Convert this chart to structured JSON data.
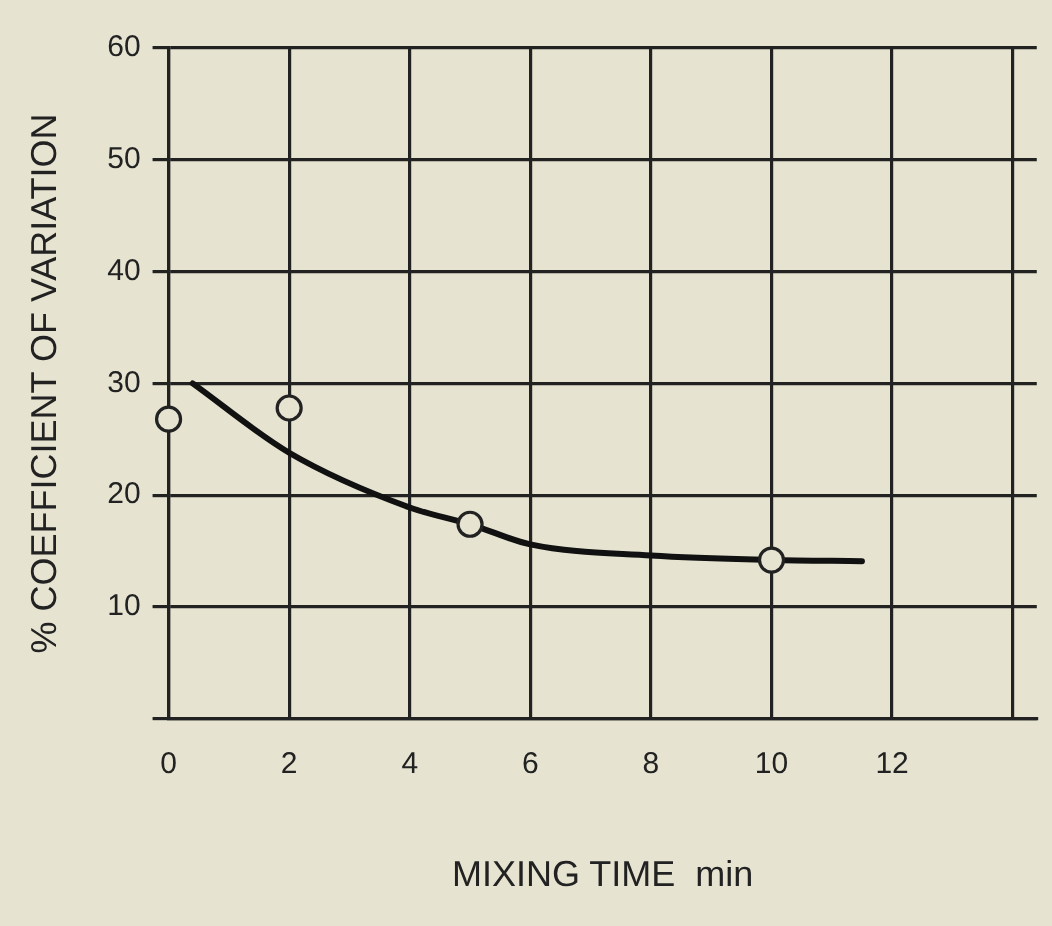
{
  "chart_data": {
    "type": "scatter",
    "xlabel": "MIXING TIME  min",
    "ylabel": "% COEFFICIENT OF VARIATION",
    "xlim": [
      0,
      14.4
    ],
    "xticks": [
      0,
      2,
      4,
      6,
      8,
      10,
      12,
      {
        "value": 14,
        "label": null
      }
    ],
    "ylim": [
      0,
      60
    ],
    "yticks": [
      {
        "value": 0,
        "label": null
      },
      10,
      20,
      30,
      40,
      50,
      60
    ],
    "grid": true,
    "legend": false,
    "series": [
      {
        "color": "#222222",
        "marker": "circle",
        "x": [
          0,
          2,
          5,
          10
        ],
        "values": [
          26.8,
          27.8,
          17.4,
          14.2
        ]
      },
      {
        "type": "line",
        "color": "#111111",
        "marker": "none",
        "x": [
          0.4,
          2,
          4,
          5,
          6,
          8,
          10,
          11.5
        ],
        "values": [
          30,
          23.8,
          18.9,
          17.4,
          15.6,
          14.6,
          14.2,
          14.1
        ]
      }
    ]
  }
}
